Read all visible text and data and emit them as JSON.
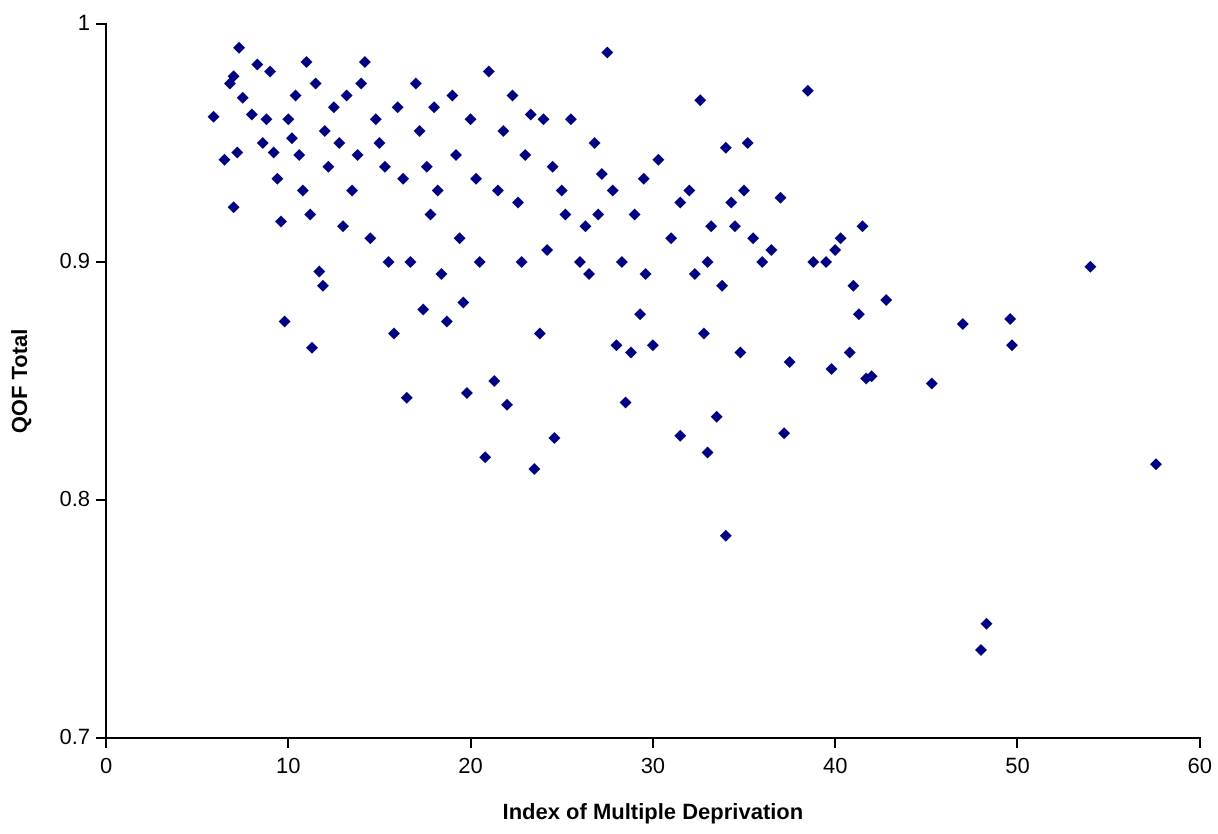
{
  "chart_data": {
    "type": "scatter",
    "xlabel": "Index of Multiple Deprivation",
    "ylabel": "QOF Total",
    "xlim": [
      0,
      60
    ],
    "xticks": [
      0,
      10,
      20,
      30,
      40,
      50,
      60
    ],
    "ylim": [
      0.7,
      1
    ],
    "yticks": [
      0.7,
      0.8,
      0.9,
      1
    ],
    "grid": false,
    "legend": false,
    "marker": "diamond",
    "series": [
      {
        "color": "#000080",
        "x": [
          5.9,
          6.5,
          6.8,
          7.0,
          7.3,
          7.2,
          7.5,
          7.0,
          8.0,
          8.3,
          8.6,
          8.8,
          9.0,
          9.2,
          9.4,
          9.6,
          9.8,
          10.0,
          10.2,
          10.4,
          10.6,
          10.8,
          11.0,
          11.2,
          11.3,
          11.5,
          11.7,
          11.9,
          12.0,
          12.2,
          12.5,
          12.8,
          13.0,
          13.2,
          13.5,
          13.8,
          14.0,
          14.2,
          14.5,
          14.8,
          15.0,
          15.3,
          15.5,
          15.8,
          16.0,
          16.3,
          16.5,
          16.7,
          17.0,
          17.2,
          17.4,
          17.6,
          17.8,
          18.0,
          18.2,
          18.4,
          18.7,
          19.0,
          19.2,
          19.4,
          19.6,
          19.8,
          20.0,
          20.3,
          20.5,
          20.8,
          21.0,
          21.3,
          21.5,
          21.8,
          22.0,
          22.3,
          22.6,
          22.8,
          23.0,
          23.3,
          23.5,
          23.8,
          24.2,
          24.6,
          25.0,
          25.5,
          26.0,
          26.3,
          26.8,
          27.2,
          27.5,
          27.8,
          28.0,
          28.3,
          28.5,
          28.8,
          29.0,
          29.3,
          29.6,
          30.0,
          30.3,
          31.5,
          32.0,
          32.3,
          32.6,
          32.8,
          33.0,
          33.2,
          33.5,
          34.0,
          34.0,
          34.3,
          34.8,
          35.0,
          35.5,
          36.0,
          36.5,
          37.0,
          37.2,
          37.5,
          38.5,
          38.8,
          39.5,
          39.8,
          40.0,
          40.3,
          40.8,
          41.0,
          41.3,
          41.5,
          41.7,
          42.0,
          42.8,
          45.3,
          47.0,
          48.0,
          48.3,
          49.6,
          49.7,
          54.0,
          57.6,
          24.0,
          24.5,
          25.2,
          26.5,
          27.0,
          29.5,
          31.0,
          31.5,
          33.0,
          33.8,
          34.5,
          35.2
        ],
        "values": [
          0.961,
          0.943,
          0.975,
          0.978,
          0.99,
          0.946,
          0.969,
          0.923,
          0.962,
          0.983,
          0.95,
          0.96,
          0.98,
          0.946,
          0.935,
          0.917,
          0.875,
          0.96,
          0.952,
          0.97,
          0.945,
          0.93,
          0.984,
          0.92,
          0.864,
          0.975,
          0.896,
          0.89,
          0.955,
          0.94,
          0.965,
          0.95,
          0.915,
          0.97,
          0.93,
          0.945,
          0.975,
          0.984,
          0.91,
          0.96,
          0.95,
          0.94,
          0.9,
          0.87,
          0.965,
          0.935,
          0.843,
          0.9,
          0.975,
          0.955,
          0.88,
          0.94,
          0.92,
          0.965,
          0.93,
          0.895,
          0.875,
          0.97,
          0.945,
          0.91,
          0.883,
          0.845,
          0.96,
          0.935,
          0.9,
          0.818,
          0.98,
          0.85,
          0.93,
          0.955,
          0.84,
          0.97,
          0.925,
          0.9,
          0.945,
          0.962,
          0.813,
          0.87,
          0.905,
          0.826,
          0.93,
          0.96,
          0.9,
          0.915,
          0.95,
          0.937,
          0.988,
          0.93,
          0.865,
          0.9,
          0.841,
          0.862,
          0.92,
          0.878,
          0.895,
          0.865,
          0.943,
          0.827,
          0.93,
          0.895,
          0.968,
          0.87,
          0.82,
          0.915,
          0.835,
          0.785,
          0.948,
          0.925,
          0.862,
          0.93,
          0.91,
          0.9,
          0.905,
          0.927,
          0.828,
          0.858,
          0.972,
          0.9,
          0.9,
          0.855,
          0.905,
          0.91,
          0.862,
          0.89,
          0.878,
          0.915,
          0.851,
          0.852,
          0.884,
          0.849,
          0.874,
          0.737,
          0.748,
          0.876,
          0.865,
          0.898,
          0.815,
          0.96,
          0.94,
          0.92,
          0.895,
          0.92,
          0.935,
          0.91,
          0.925,
          0.9,
          0.89,
          0.915,
          0.95
        ]
      }
    ]
  }
}
